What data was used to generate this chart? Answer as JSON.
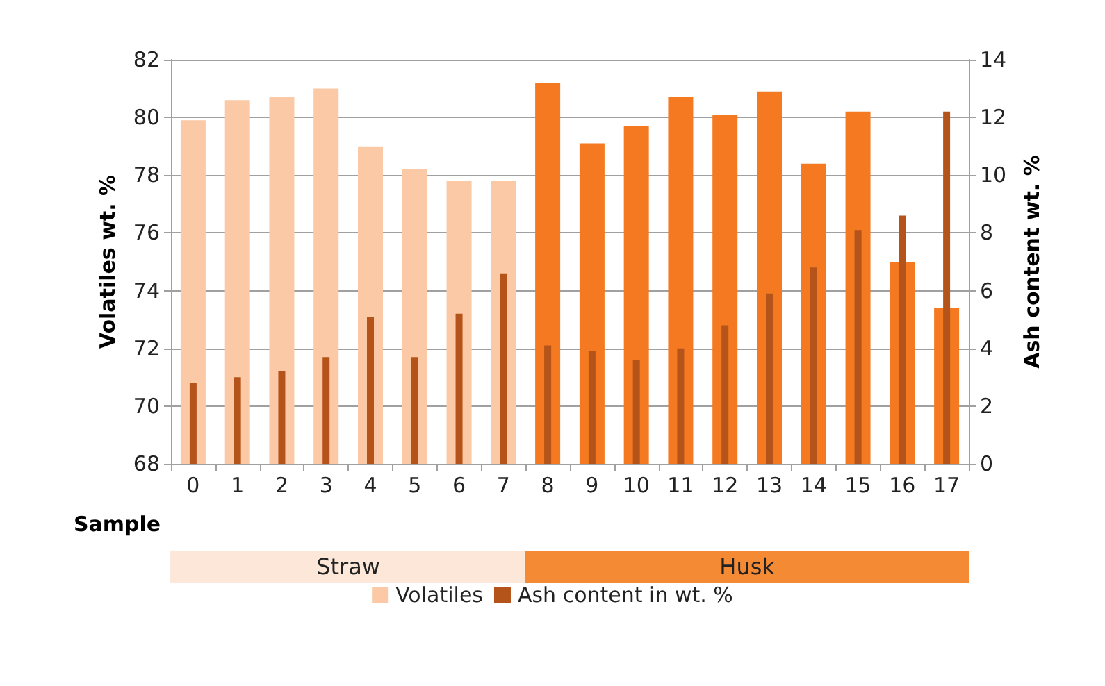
{
  "chart_data": {
    "type": "bar",
    "xlabel": "Sample",
    "ylabel": "Volatiles wt. %",
    "y2label": "Ash content wt. %",
    "categories": [
      "0",
      "1",
      "2",
      "3",
      "4",
      "5",
      "6",
      "7",
      "8",
      "9",
      "10",
      "11",
      "12",
      "13",
      "14",
      "15",
      "16",
      "17"
    ],
    "series": [
      {
        "name": "Volatiles",
        "color": "#fbc9a6",
        "colors": [
          "#fbc9a6",
          "#fbc9a6",
          "#fbc9a6",
          "#fbc9a6",
          "#fbc9a6",
          "#fbc9a6",
          "#fbc9a6",
          "#fbc9a6",
          "#f47920",
          "#f47920",
          "#f47920",
          "#f47920",
          "#f47920",
          "#f47920",
          "#f47920",
          "#f47920",
          "#f47920",
          "#f47920"
        ],
        "values": [
          79.9,
          80.6,
          80.7,
          81.0,
          79.0,
          78.2,
          77.8,
          77.8,
          81.2,
          79.1,
          79.7,
          80.7,
          80.1,
          80.9,
          78.4,
          80.2,
          75.0,
          73.4
        ]
      },
      {
        "name": "Ash content in wt. %",
        "color": "#b5541a",
        "axis": "y2",
        "values": [
          2.8,
          3.0,
          3.2,
          3.7,
          5.1,
          3.7,
          5.2,
          6.6,
          4.1,
          3.9,
          3.6,
          4.0,
          4.8,
          5.9,
          6.8,
          8.1,
          8.6,
          12.2
        ]
      }
    ],
    "ylim": [
      68,
      82
    ],
    "yticks": [
      68,
      70,
      72,
      74,
      76,
      78,
      80,
      82
    ],
    "y2lim": [
      0,
      14
    ],
    "y2ticks": [
      0,
      2,
      4,
      6,
      8,
      10,
      12,
      14
    ],
    "annotations": [
      "Straw",
      "Husk"
    ],
    "grid": "y",
    "legend": "bottom"
  }
}
